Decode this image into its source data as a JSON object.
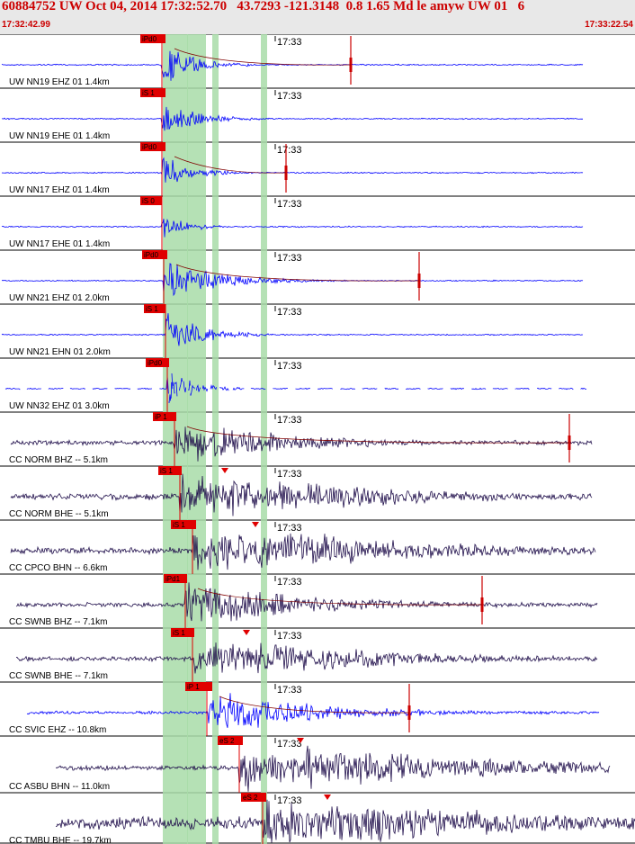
{
  "header": {
    "title": "60884752 UW Oct 04, 2014 17:32:52.70   43.7293 -121.3148  0.8 1.65 Md le amyw UW 01   6",
    "start_time": "17:32:42.99",
    "end_time": "17:33:22.54"
  },
  "minute_tick_label": "17:33",
  "colors": {
    "background": "#ffffff",
    "header_background": "#e8e8e8",
    "title": "#cc0000",
    "pick_box": "#e00000",
    "pick_band": "#a8dca8",
    "trace_blue": "#0000ff",
    "trace_dark": "#22114d",
    "coda_marker": "#cc0000"
  },
  "channels": [
    {
      "label": "UW NN19 EHZ 01 1.4km",
      "pick_label": "iPd0",
      "trace_color": "blue"
    },
    {
      "label": "UW NN19 EHE 01 1.4km",
      "pick_label": "iS 1",
      "trace_color": "blue"
    },
    {
      "label": "UW NN17 EHZ 01 1.4km",
      "pick_label": "iPd0",
      "trace_color": "blue"
    },
    {
      "label": "UW NN17 EHE 01 1.4km",
      "pick_label": "iS 0",
      "trace_color": "blue"
    },
    {
      "label": "UW NN21 EHZ 01 2.0km",
      "pick_label": "iPd0",
      "trace_color": "blue"
    },
    {
      "label": "UW NN21 EHN 01 2.0km",
      "pick_label": "iS 1",
      "trace_color": "blue"
    },
    {
      "label": "UW NN32 EHZ 01 3.0km",
      "pick_label": "iPd0",
      "trace_color": "blue"
    },
    {
      "label": "CC NORM BHZ -- 5.1km",
      "pick_label": "iP 1",
      "trace_color": "dark"
    },
    {
      "label": "CC NORM BHE -- 5.1km",
      "pick_label": "iS 1",
      "trace_color": "dark"
    },
    {
      "label": "CC CPCO BHN -- 6.6km",
      "pick_label": "iS 1",
      "trace_color": "dark"
    },
    {
      "label": "CC SWNB BHZ -- 7.1km",
      "pick_label": "iPd1",
      "trace_color": "dark"
    },
    {
      "label": "CC SWNB BHE -- 7.1km",
      "pick_label": "iS 1",
      "trace_color": "dark"
    },
    {
      "label": "CC SVIC EHZ -- 10.8km",
      "pick_label": "iP 1",
      "trace_color": "blue"
    },
    {
      "label": "CC ASBU BHN -- 11.0km",
      "pick_label": "eS 2",
      "trace_color": "dark"
    },
    {
      "label": "CC TMBU BHE -- 19.7km",
      "pick_label": "eS 2",
      "trace_color": "dark"
    }
  ]
}
